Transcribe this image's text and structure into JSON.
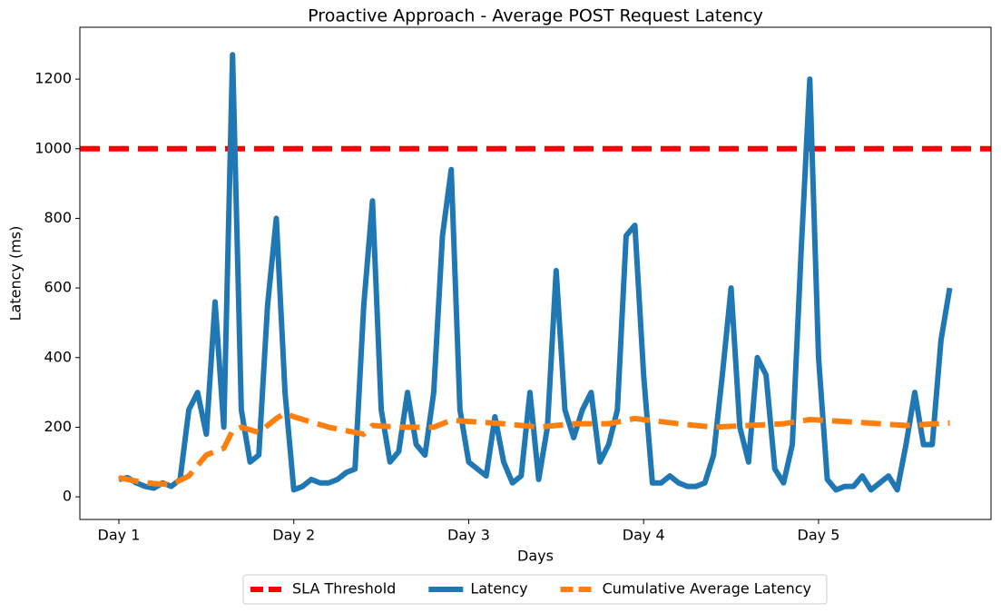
{
  "chart_data": {
    "type": "line",
    "title": "Proactive Approach - Average POST Request Latency",
    "x_label": "Days",
    "y_label": "Latency (ms)",
    "xlim": [
      0.777,
      5.986
    ],
    "ylim": [
      -65,
      1349
    ],
    "xticks": [
      {
        "value": 1,
        "label": "Day 1"
      },
      {
        "value": 2,
        "label": "Day 2"
      },
      {
        "value": 3,
        "label": "Day 3"
      },
      {
        "value": 4,
        "label": "Day 4"
      },
      {
        "value": 5,
        "label": "Day 5"
      }
    ],
    "yticks": [
      0,
      200,
      400,
      600,
      800,
      1000,
      1200
    ],
    "threshold": {
      "name": "SLA Threshold",
      "value": 1000,
      "color": "#ff0000",
      "dashed": true
    },
    "legend": "bottom",
    "series": [
      {
        "name": "Latency",
        "color": "#1f77b4",
        "dashed": false,
        "x": [
          1.0,
          1.05,
          1.1,
          1.15,
          1.2,
          1.25,
          1.3,
          1.35,
          1.4,
          1.45,
          1.5,
          1.55,
          1.6,
          1.65,
          1.7,
          1.75,
          1.8,
          1.85,
          1.9,
          1.95,
          2.0,
          2.05,
          2.1,
          2.15,
          2.2,
          2.25,
          2.3,
          2.35,
          2.4,
          2.45,
          2.5,
          2.55,
          2.6,
          2.65,
          2.7,
          2.75,
          2.8,
          2.85,
          2.9,
          2.95,
          3.0,
          3.05,
          3.1,
          3.15,
          3.2,
          3.25,
          3.3,
          3.35,
          3.4,
          3.45,
          3.5,
          3.55,
          3.6,
          3.65,
          3.7,
          3.75,
          3.8,
          3.85,
          3.9,
          3.95,
          4.0,
          4.05,
          4.1,
          4.15,
          4.2,
          4.25,
          4.3,
          4.35,
          4.4,
          4.45,
          4.5,
          4.55,
          4.6,
          4.65,
          4.7,
          4.75,
          4.8,
          4.85,
          4.9,
          4.95,
          5.0,
          5.05,
          5.1,
          5.15,
          5.2,
          5.25,
          5.3,
          5.35,
          5.4,
          5.45,
          5.5,
          5.55,
          5.6,
          5.65,
          5.7,
          5.75
        ],
        "values": [
          50,
          55,
          40,
          30,
          25,
          40,
          30,
          50,
          250,
          300,
          180,
          560,
          200,
          1270,
          250,
          100,
          120,
          550,
          800,
          300,
          20,
          30,
          50,
          40,
          40,
          50,
          70,
          80,
          550,
          850,
          250,
          100,
          130,
          300,
          150,
          120,
          300,
          750,
          940,
          250,
          100,
          80,
          60,
          230,
          100,
          40,
          60,
          300,
          50,
          200,
          650,
          250,
          170,
          250,
          300,
          100,
          150,
          250,
          750,
          780,
          350,
          40,
          40,
          60,
          40,
          30,
          30,
          40,
          120,
          350,
          600,
          200,
          100,
          400,
          350,
          80,
          40,
          150,
          700,
          1200,
          400,
          50,
          20,
          30,
          30,
          60,
          20,
          40,
          60,
          20,
          150,
          300,
          150,
          150,
          450,
          600
        ]
      },
      {
        "name": "Cumulative Average Latency",
        "color": "#ff7f0e",
        "dashed": true,
        "x": [
          1.0,
          1.1,
          1.2,
          1.3,
          1.4,
          1.5,
          1.6,
          1.65,
          1.7,
          1.8,
          1.9,
          1.95,
          2.0,
          2.2,
          2.4,
          2.45,
          2.6,
          2.8,
          2.9,
          3.2,
          3.4,
          3.6,
          3.8,
          3.95,
          4.2,
          4.4,
          4.6,
          4.8,
          4.95,
          5.2,
          5.5,
          5.75
        ],
        "values": [
          55,
          45,
          38,
          35,
          60,
          120,
          140,
          190,
          200,
          185,
          225,
          240,
          230,
          200,
          180,
          205,
          200,
          200,
          220,
          210,
          200,
          210,
          210,
          225,
          210,
          200,
          205,
          210,
          222,
          215,
          205,
          212
        ]
      }
    ]
  }
}
